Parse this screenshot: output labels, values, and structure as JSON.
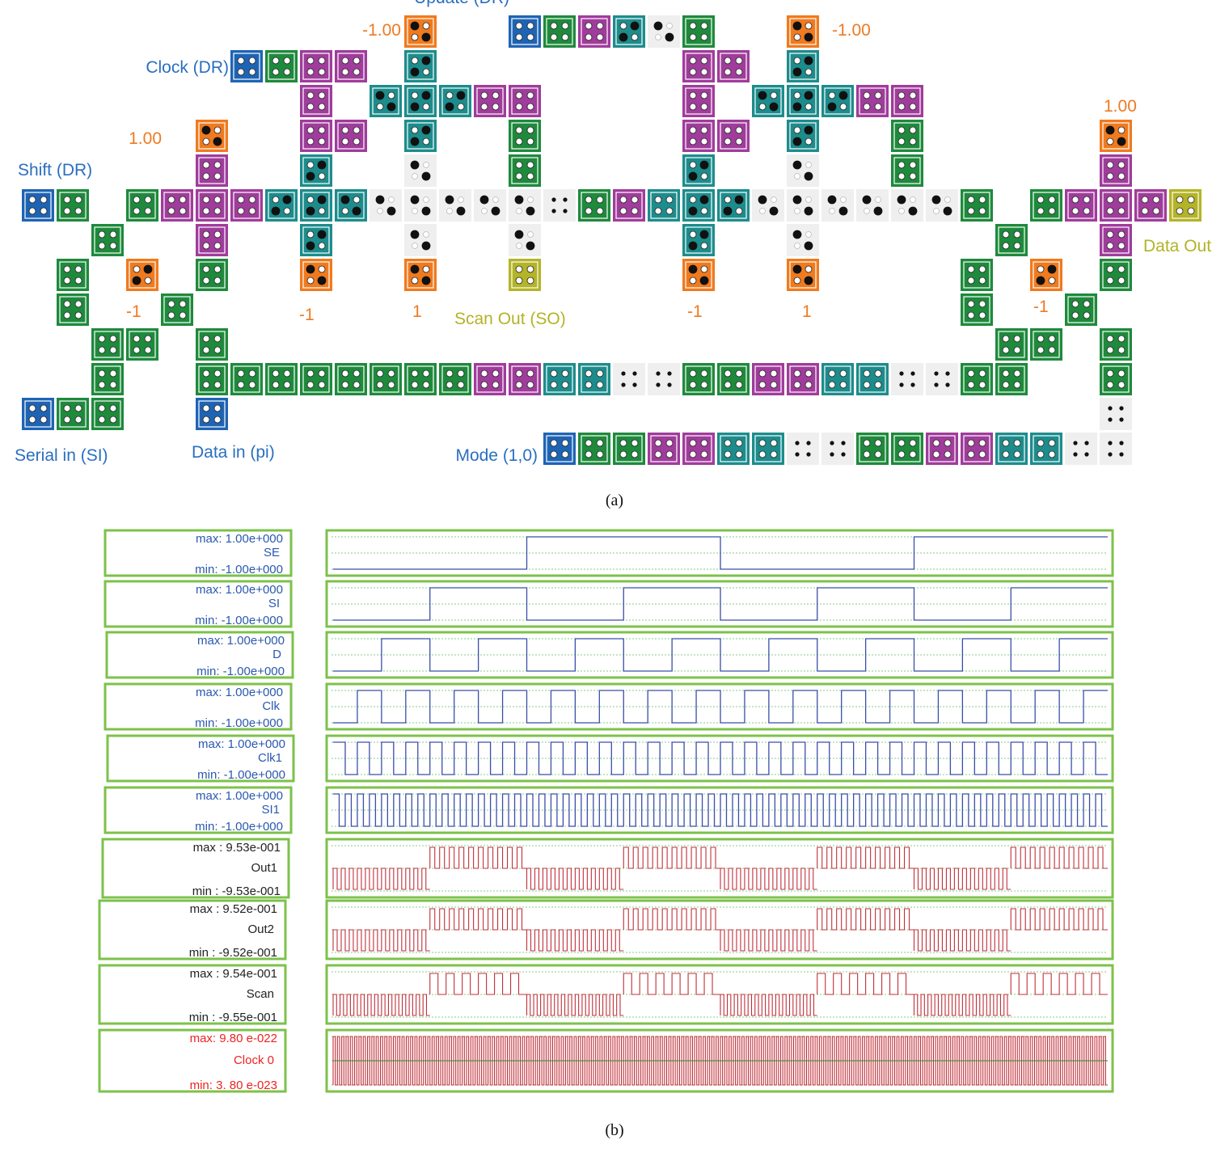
{
  "panel_a": {
    "colors": {
      "blue": "#1e64b4",
      "green": "#1e8a3c",
      "purple": "#a03c9b",
      "teal": "#1d8c8c",
      "orange": "#f07a1e",
      "olive": "#b4b428",
      "white": "#efefef",
      "label_blue": "#2a6fc0",
      "label_orange": "#ee7a22",
      "label_olive": "#b3b327"
    },
    "labels": {
      "update_dr": "Update (DR)",
      "clock_dr": "Clock (DR)",
      "shift_dr": "Shift (DR)",
      "serial_in": "Serial in (SI)",
      "data_in": "Data in (pi)",
      "mode": "Mode (1,0)",
      "scan_out": "Scan Out (SO)",
      "data_out": "Data Out"
    },
    "fixed_inputs": {
      "neg_top_left": "-1.00",
      "neg_top_right": "-1.00",
      "pos_left": "1.00",
      "pos_right": "1.00",
      "neg1_a": "-1",
      "neg1_b": "-1",
      "one_a": "1",
      "neg1_c": "-1",
      "one_b": "1",
      "neg1_d": "-1"
    }
  },
  "panel_b": {
    "signals": [
      {
        "name": "SE",
        "max": "max: 1.00e+000",
        "min": "min: -1.00e+000",
        "color": "#2a58b0"
      },
      {
        "name": "SI",
        "max": "max: 1.00e+000",
        "min": "min: -1.00e+000",
        "color": "#2a58b0"
      },
      {
        "name": "D",
        "max": "max: 1.00e+000",
        "min": "min: -1.00e+000",
        "color": "#2a58b0"
      },
      {
        "name": "Clk",
        "max": "max: 1.00e+000",
        "min": "min: -1.00e+000",
        "color": "#2a58b0"
      },
      {
        "name": "Clk1",
        "max": "max: 1.00e+000",
        "min": "min: -1.00e+000",
        "color": "#2a58b0"
      },
      {
        "name": "SI1",
        "max": "max: 1.00e+000",
        "min": "min: -1.00e+000",
        "color": "#2a58b0"
      },
      {
        "name": "Out1",
        "max": "max : 9.53e-001",
        "min": "min : -9.53e-001",
        "color": "#222222"
      },
      {
        "name": "Out2",
        "max": "max : 9.52e-001",
        "min": "min : -9.52e-001",
        "color": "#222222"
      },
      {
        "name": "Scan",
        "max": "max : 9.54e-001",
        "min": "min : -9.55e-001",
        "color": "#222222"
      },
      {
        "name": "Clock 0",
        "max": "max:  9.80 e-022",
        "min": "min:  3. 80 e-023",
        "color": "#ee2222"
      }
    ],
    "frame_color": "#7cc24a",
    "blue_wave": "#3a4fa8",
    "red_wave": "#c0303a"
  },
  "captions": {
    "a": "(a)",
    "b": "(b)"
  }
}
